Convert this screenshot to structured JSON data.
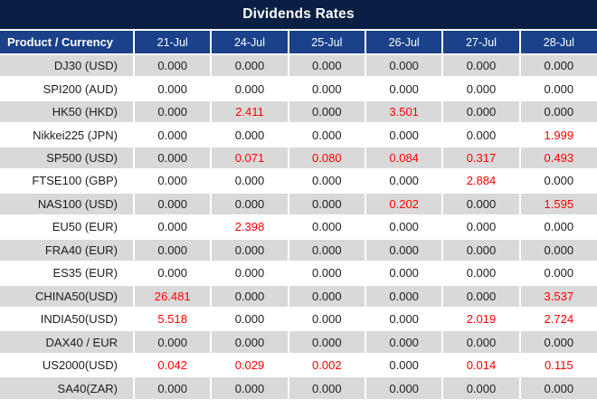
{
  "title": "Dividends Rates",
  "colors": {
    "title_bg": "#0a1f44",
    "header_bg": "#1a4189",
    "row_bg": "#ffffff",
    "row_alt_bg": "#d9d9d9",
    "text_dark": "#1d1d1d",
    "value_red": "#ff0000"
  },
  "chart_data": {
    "type": "table",
    "title": "Dividends Rates",
    "columns": [
      "Product / Currency",
      "21-Jul",
      "24-Jul",
      "25-Jul",
      "26-Jul",
      "27-Jul",
      "28-Jul"
    ],
    "highlight_rule": "non-zero dividend values rendered in red",
    "rows": [
      {
        "product": "DJ30 (USD)",
        "values": [
          "0.000",
          "0.000",
          "0.000",
          "0.000",
          "0.000",
          "0.000"
        ]
      },
      {
        "product": "SPI200 (AUD)",
        "values": [
          "0.000",
          "0.000",
          "0.000",
          "0.000",
          "0.000",
          "0.000"
        ]
      },
      {
        "product": "HK50 (HKD)",
        "values": [
          "0.000",
          "2.411",
          "0.000",
          "3.501",
          "0.000",
          "0.000"
        ]
      },
      {
        "product": "Nikkei225 (JPN)",
        "values": [
          "0.000",
          "0.000",
          "0.000",
          "0.000",
          "0.000",
          "1.999"
        ]
      },
      {
        "product": "SP500 (USD)",
        "values": [
          "0.000",
          "0.071",
          "0.080",
          "0.084",
          "0.317",
          "0.493"
        ]
      },
      {
        "product": "FTSE100 (GBP)",
        "values": [
          "0.000",
          "0.000",
          "0.000",
          "0.000",
          "2.884",
          "0.000"
        ]
      },
      {
        "product": "NAS100 (USD)",
        "values": [
          "0.000",
          "0.000",
          "0.000",
          "0.202",
          "0.000",
          "1.595"
        ]
      },
      {
        "product": "EU50 (EUR)",
        "values": [
          "0.000",
          "2.398",
          "0.000",
          "0.000",
          "0.000",
          "0.000"
        ]
      },
      {
        "product": "FRA40 (EUR)",
        "values": [
          "0.000",
          "0.000",
          "0.000",
          "0.000",
          "0.000",
          "0.000"
        ]
      },
      {
        "product": "ES35 (EUR)",
        "values": [
          "0.000",
          "0.000",
          "0.000",
          "0.000",
          "0.000",
          "0.000"
        ]
      },
      {
        "product": "CHINA50(USD)",
        "values": [
          "26.481",
          "0.000",
          "0.000",
          "0.000",
          "0.000",
          "3.537"
        ]
      },
      {
        "product": "INDIA50(USD)",
        "values": [
          "5.518",
          "0.000",
          "0.000",
          "0.000",
          "2.019",
          "2.724"
        ]
      },
      {
        "product": "DAX40 / EUR",
        "values": [
          "0.000",
          "0.000",
          "0.000",
          "0.000",
          "0.000",
          "0.000"
        ]
      },
      {
        "product": "US2000(USD)",
        "values": [
          "0.042",
          "0.029",
          "0.002",
          "0.000",
          "0.014",
          "0.115"
        ]
      },
      {
        "product": "SA40(ZAR)",
        "values": [
          "0.000",
          "0.000",
          "0.000",
          "0.000",
          "0.000",
          "0.000"
        ]
      }
    ]
  }
}
